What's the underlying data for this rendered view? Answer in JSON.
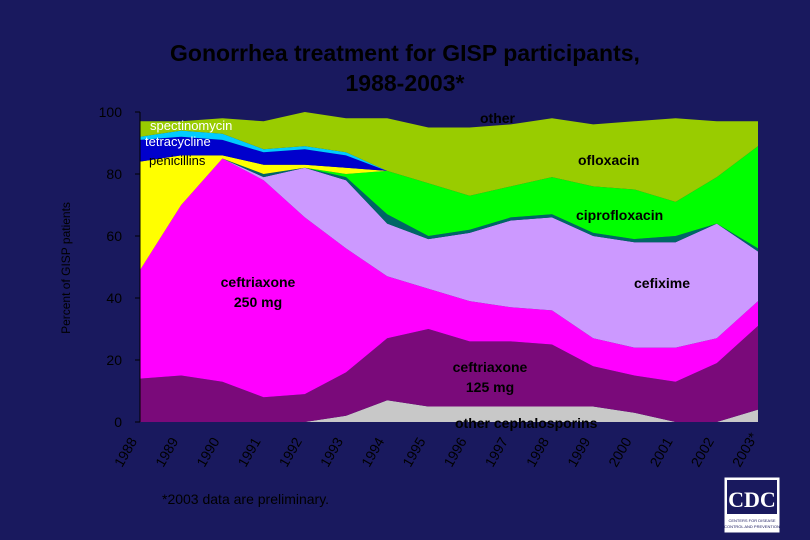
{
  "title_line1": "Gonorrhea treatment for GISP participants,",
  "title_line2": "1988-2003*",
  "footnote": "*2003 data are preliminary.",
  "logo": {
    "text": "CDC",
    "subtext": "Centers for Disease Control and Prevention"
  },
  "colors": {
    "background": "#19195e"
  },
  "chart_data": {
    "type": "area",
    "stacked": true,
    "ylabel": "Percent of GISP patients",
    "xlabel": "",
    "ylim": [
      0,
      100
    ],
    "yticks": [
      0,
      20,
      40,
      60,
      80,
      100
    ],
    "x": [
      "1988",
      "1989",
      "1990",
      "1991",
      "1992",
      "1993",
      "1994",
      "1995",
      "1996",
      "1997",
      "1998",
      "1999",
      "2000",
      "2001",
      "2002",
      "2003*"
    ],
    "series": [
      {
        "name": "other cephalosporins",
        "color": "#c8c8c8",
        "values": [
          0,
          0,
          0,
          0,
          0,
          2,
          7,
          5,
          5,
          5,
          5,
          5,
          3,
          0,
          0,
          4
        ]
      },
      {
        "name": "ceftriaxone 125 mg",
        "color": "#7a0a7a",
        "values": [
          14,
          15,
          13,
          8,
          9,
          14,
          20,
          25,
          25,
          21,
          21,
          13,
          12,
          13,
          19,
          27
        ]
      },
      {
        "name": "ceftriaxone 250 mg",
        "color": "#ff00ff",
        "values": [
          0,
          0,
          0,
          0,
          0,
          0,
          0,
          0,
          0,
          0,
          0,
          0,
          0,
          0,
          0,
          0
        ]
      },
      {
        "name": "cefixime",
        "color": "#cc99ff",
        "values": [
          0,
          0,
          0,
          0,
          0,
          0,
          0,
          0,
          0,
          0,
          0,
          0,
          0,
          0,
          0,
          0
        ]
      },
      {
        "name": "ciprofloxacin",
        "color": "#006666",
        "values": [
          0,
          0,
          0,
          0,
          0,
          0,
          0,
          0,
          0,
          0,
          0,
          0,
          0,
          0,
          0,
          0
        ]
      },
      {
        "name": "ofloxacin",
        "color": "#00ff00",
        "values": [
          0,
          0,
          0,
          0,
          0,
          0,
          0,
          0,
          0,
          0,
          0,
          0,
          0,
          0,
          0,
          0
        ]
      },
      {
        "name": "penicillins",
        "color": "#ffff00",
        "values": [
          0,
          0,
          0,
          0,
          0,
          0,
          0,
          0,
          0,
          0,
          0,
          0,
          0,
          0,
          0,
          0
        ]
      },
      {
        "name": "tetracycline",
        "color": "#0000cc",
        "values": [
          0,
          0,
          0,
          0,
          0,
          0,
          0,
          0,
          0,
          0,
          0,
          0,
          0,
          0,
          0,
          0
        ]
      },
      {
        "name": "spectinomycin",
        "color": "#00ccff",
        "values": [
          0,
          0,
          0,
          0,
          0,
          0,
          0,
          0,
          0,
          0,
          0,
          0,
          0,
          0,
          0,
          0
        ]
      },
      {
        "name": "other",
        "color": "#99cc00",
        "values": [
          0,
          0,
          0,
          0,
          0,
          0,
          0,
          0,
          0,
          0,
          0,
          0,
          0,
          0,
          0,
          0
        ]
      }
    ],
    "cumulative_tops": {
      "other cephalosporins": [
        0,
        0,
        0,
        0,
        0,
        2,
        7,
        5,
        5,
        5,
        5,
        5,
        3,
        0,
        0,
        4
      ],
      "ceftriaxone 125 mg": [
        14,
        15,
        13,
        8,
        9,
        16,
        27,
        30,
        26,
        26,
        25,
        18,
        15,
        13,
        19,
        31
      ],
      "ceftriaxone 250 mg": [
        49,
        70,
        85,
        78,
        66,
        56,
        47,
        43,
        39,
        37,
        36,
        27,
        24,
        24,
        27,
        39
      ],
      "cefixime": [
        49,
        70,
        85,
        79,
        82,
        78,
        64,
        59,
        61,
        65,
        66,
        60,
        58,
        58,
        64,
        55
      ],
      "ciprofloxacin": [
        49,
        70,
        85,
        80,
        82,
        79,
        67,
        60,
        62,
        66,
        67,
        61,
        59,
        60,
        64,
        56
      ],
      "ofloxacin": [
        49,
        70,
        85,
        80,
        82,
        80,
        81,
        77,
        73,
        76,
        79,
        76,
        75,
        71,
        79,
        89
      ],
      "penicillins": [
        84,
        86,
        86,
        83,
        83,
        82,
        81,
        77,
        73,
        76,
        79,
        76,
        75,
        71,
        79,
        89
      ],
      "tetracycline": [
        91,
        92,
        91,
        87,
        88,
        86,
        81,
        77,
        73,
        76,
        79,
        76,
        75,
        71,
        79,
        89
      ],
      "spectinomycin": [
        92,
        94,
        93,
        88,
        89,
        87,
        81,
        77,
        73,
        76,
        79,
        76,
        75,
        71,
        79,
        89
      ],
      "other": [
        97,
        97,
        98,
        97,
        100,
        98,
        98,
        95,
        95,
        96,
        98,
        96,
        97,
        98,
        97,
        97
      ]
    },
    "annotations": [
      {
        "text": "spectinomycin",
        "series": "spectinomycin"
      },
      {
        "text": "tetracycline",
        "series": "tetracycline"
      },
      {
        "text": "penicillins",
        "series": "penicillins"
      },
      {
        "text": "other",
        "series": "other"
      },
      {
        "text": "ofloxacin",
        "series": "ofloxacin"
      },
      {
        "text": "ciprofloxacin",
        "series": "ciprofloxacin"
      },
      {
        "text": "cefixime",
        "series": "cefixime"
      },
      {
        "text": "ceftriaxone",
        "text2": "250 mg",
        "series": "ceftriaxone 250 mg"
      },
      {
        "text": "ceftriaxone",
        "text2": "125 mg",
        "series": "ceftriaxone 125 mg"
      },
      {
        "text": "other cephalosporins",
        "series": "other cephalosporins"
      }
    ],
    "grid": false,
    "legend": "none"
  }
}
